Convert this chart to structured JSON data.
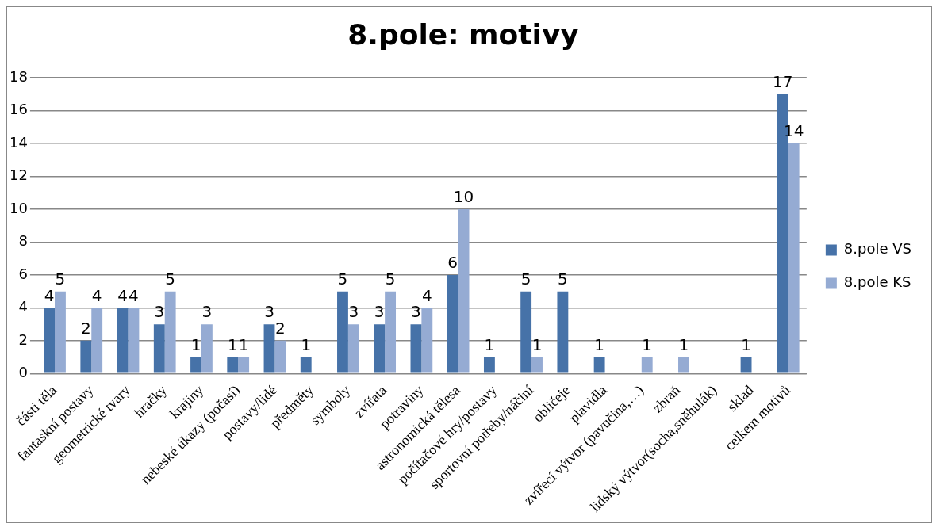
{
  "chart_data": {
    "type": "bar",
    "title": "8.pole: motivy",
    "categories": [
      "části těla",
      "fantaskní postavy",
      "geometrické tvary",
      "hračky",
      "krajiny",
      "nebeské úkazy (počasí)",
      "postavy/lidé",
      "předměty",
      "symboly",
      "zvířata",
      "potraviny",
      "astronomická tělesa",
      "počítačové hry/postavy",
      "sportovní potřeby/náčiní",
      "obličeje",
      "plavidla",
      "zvířecí výtvor (pavučina,…)",
      "zbraň",
      "lidský výtvor(socha,sněhulák)",
      "sklad",
      "celkem motivů"
    ],
    "series": [
      {
        "name": "8.pole VS",
        "color": "#4672a8",
        "values": [
          4,
          2,
          4,
          3,
          1,
          1,
          3,
          1,
          5,
          3,
          3,
          6,
          1,
          5,
          5,
          1,
          null,
          null,
          null,
          1,
          17
        ]
      },
      {
        "name": "8.pole KS",
        "color": "#95abd3",
        "values": [
          5,
          4,
          4,
          5,
          3,
          1,
          2,
          null,
          3,
          5,
          4,
          10,
          null,
          1,
          null,
          null,
          1,
          1,
          null,
          null,
          14
        ]
      }
    ],
    "ylim": [
      0,
      18
    ],
    "yticks": [
      0,
      2,
      4,
      6,
      8,
      10,
      12,
      14,
      16,
      18
    ],
    "grid": "y",
    "legend": "right",
    "data_labels": true
  }
}
